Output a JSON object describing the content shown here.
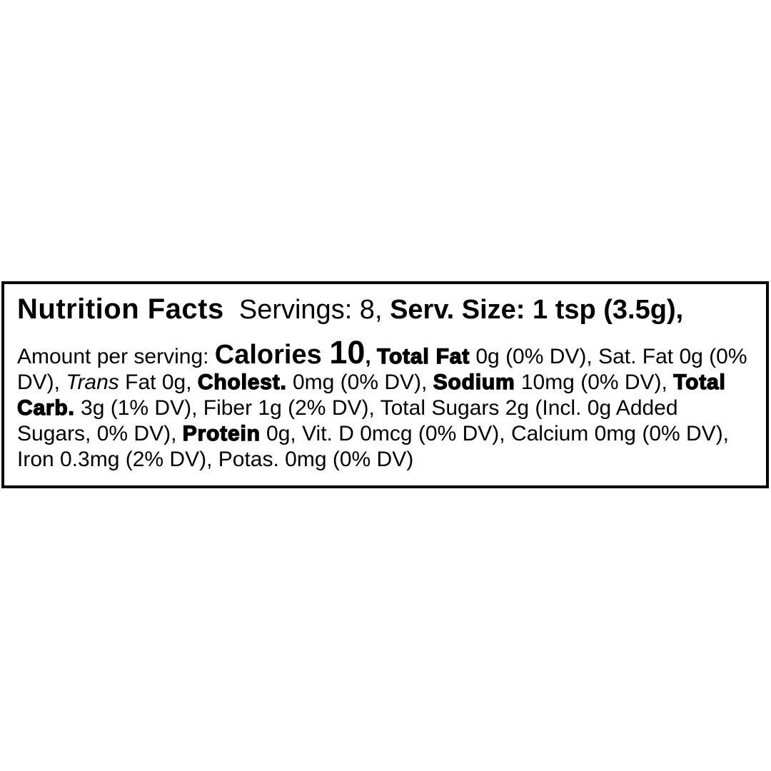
{
  "colors": {
    "background": "#ffffff",
    "text": "#000000",
    "border": "#000000"
  },
  "label": {
    "title": "Nutrition Facts",
    "header_runs": [
      {
        "text": "Nutrition Facts",
        "style": "title"
      },
      {
        "text": "  Servings: 8, ",
        "style": "regular-large"
      },
      {
        "text": "Serv. Size: 1 tsp (3.5g),",
        "style": "bold-large"
      }
    ],
    "body_runs": [
      {
        "text": "Amount per serving: ",
        "style": "regular"
      },
      {
        "text": "Calories ",
        "style": "calories"
      },
      {
        "text": "10",
        "style": "calories-value"
      },
      {
        "text": ", ",
        "style": "bold"
      },
      {
        "text": "Total Fat",
        "style": "heavy"
      },
      {
        "text": " 0g (0% DV), Sat. Fat 0g (0% DV), ",
        "style": "regular"
      },
      {
        "text": "Trans",
        "style": "italic"
      },
      {
        "text": " Fat 0g, ",
        "style": "regular"
      },
      {
        "text": "Cholest.",
        "style": "heavy"
      },
      {
        "text": " 0mg (0% DV), ",
        "style": "regular"
      },
      {
        "text": "Sodium",
        "style": "heavy"
      },
      {
        "text": " 10mg (0% DV), ",
        "style": "regular"
      },
      {
        "text": "Total Carb.",
        "style": "heavy"
      },
      {
        "text": " 3g (1% DV), Fiber 1g (2% DV), Total Sugars 2g (Incl. 0g Added Sugars, 0% DV), ",
        "style": "regular"
      },
      {
        "text": "Protein",
        "style": "heavy"
      },
      {
        "text": " 0g, Vit. D 0mcg (0% DV), Calcium 0mg (0% DV), Iron 0.3mg (2% DV), Potas. 0mg (0% DV)",
        "style": "regular"
      }
    ],
    "nutrition": {
      "servings": "8",
      "serving_size": "1 tsp (3.5g)",
      "amount_per_serving_label": "Amount per serving:",
      "calories": "10",
      "nutrients": [
        {
          "name": "Total Fat",
          "amount": "0g",
          "dv": "0% DV"
        },
        {
          "name": "Sat. Fat",
          "amount": "0g",
          "dv": "0% DV"
        },
        {
          "name": "Trans Fat",
          "amount": "0g",
          "dv": ""
        },
        {
          "name": "Cholest.",
          "amount": "0mg",
          "dv": "0% DV"
        },
        {
          "name": "Sodium",
          "amount": "10mg",
          "dv": "0% DV"
        },
        {
          "name": "Total Carb.",
          "amount": "3g",
          "dv": "1% DV"
        },
        {
          "name": "Fiber",
          "amount": "1g",
          "dv": "2% DV"
        },
        {
          "name": "Total Sugars",
          "amount": "2g",
          "dv": ""
        },
        {
          "name": "Incl. Added Sugars",
          "amount": "0g",
          "dv": "0% DV"
        },
        {
          "name": "Protein",
          "amount": "0g",
          "dv": ""
        },
        {
          "name": "Vit. D",
          "amount": "0mcg",
          "dv": "0% DV"
        },
        {
          "name": "Calcium",
          "amount": "0mg",
          "dv": "0% DV"
        },
        {
          "name": "Iron",
          "amount": "0.3mg",
          "dv": "2% DV"
        },
        {
          "name": "Potas.",
          "amount": "0mg",
          "dv": "0% DV"
        }
      ]
    }
  }
}
